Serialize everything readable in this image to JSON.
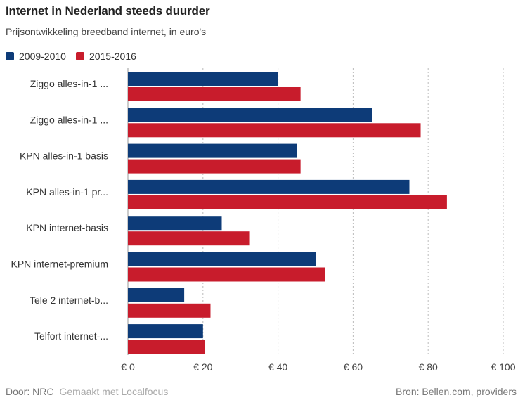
{
  "chart_data": {
    "type": "bar",
    "orientation": "horizontal",
    "title": "Internet in Nederland steeds duurder",
    "subtitle": "Prijsontwikkeling breedband internet, in euro's",
    "categories": [
      "Ziggo alles-in-1 ...",
      "Ziggo alles-in-1 ...",
      "KPN alles-in-1 basis",
      "KPN alles-in-1 pr...",
      "KPN internet-basis",
      "KPN internet-premium",
      "Tele 2 internet-b...",
      "Telfort internet-..."
    ],
    "series": [
      {
        "name": "2009-2010",
        "color": "#0d3b78",
        "values": [
          40,
          65,
          45,
          75,
          25,
          50,
          15,
          20
        ]
      },
      {
        "name": "2015-2016",
        "color": "#c81c2c",
        "values": [
          46,
          78,
          46,
          85,
          32.5,
          52.5,
          22,
          20.5
        ]
      }
    ],
    "xlim": [
      0,
      100
    ],
    "xticks": [
      0,
      20,
      40,
      60,
      80,
      100
    ],
    "xtick_labels": [
      "€ 0",
      "€ 20",
      "€ 40",
      "€ 60",
      "€ 80",
      "€ 100"
    ],
    "grid": true,
    "legend_position": "top-left"
  },
  "footer": {
    "author": "Door: NRC",
    "made_with": "Gemaakt met Localfocus",
    "source": "Bron:  Bellen.com, providers"
  }
}
